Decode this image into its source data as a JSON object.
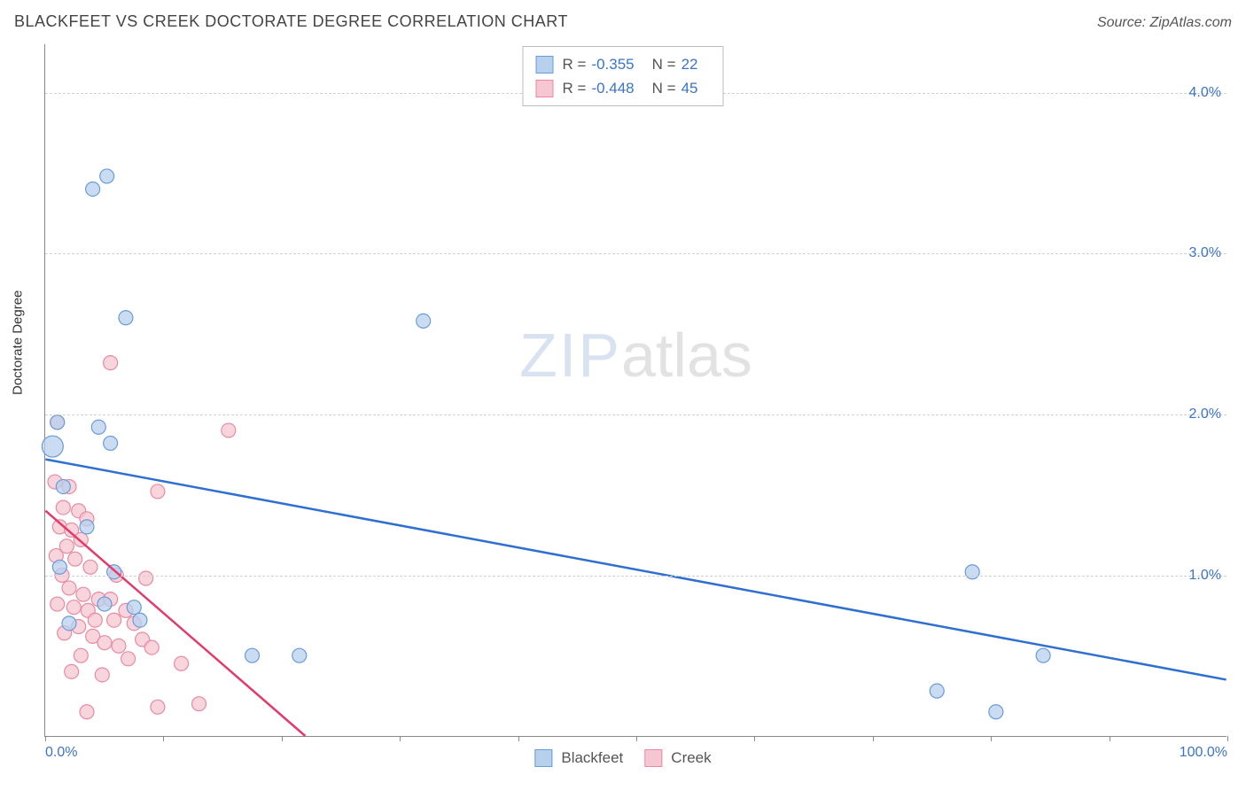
{
  "title": "BLACKFEET VS CREEK DOCTORATE DEGREE CORRELATION CHART",
  "source": "Source: ZipAtlas.com",
  "y_axis_label": "Doctorate Degree",
  "watermark": {
    "part1": "ZIP",
    "part2": "atlas"
  },
  "chart": {
    "type": "scatter",
    "xlim": [
      0,
      100
    ],
    "ylim": [
      0,
      4.3
    ],
    "x_ticks": [
      0,
      10,
      20,
      30,
      40,
      50,
      60,
      70,
      80,
      90,
      100
    ],
    "x_tick_labels": {
      "0": "0.0%",
      "100": "100.0%"
    },
    "y_ticks": [
      1.0,
      2.0,
      3.0,
      4.0
    ],
    "y_tick_labels": [
      "1.0%",
      "2.0%",
      "3.0%",
      "4.0%"
    ],
    "background_color": "#ffffff",
    "grid_color": "#d8d8d8",
    "axis_color": "#888888",
    "tick_label_color": "#3b74c8",
    "marker_radius": 8,
    "marker_radius_large": 12,
    "line_width": 2.5,
    "series": [
      {
        "name": "Blackfeet",
        "fill_color": "#b7d0ee",
        "stroke_color": "#6a9bd8",
        "line_color": "#2f6fd0",
        "R": "-0.355",
        "N": "22",
        "trend": {
          "x1": 0,
          "y1": 1.72,
          "x2": 100,
          "y2": 0.35
        },
        "points": [
          {
            "x": 0.6,
            "y": 1.8,
            "r": 12
          },
          {
            "x": 5.2,
            "y": 3.48
          },
          {
            "x": 4.0,
            "y": 3.4
          },
          {
            "x": 6.8,
            "y": 2.6
          },
          {
            "x": 32.0,
            "y": 2.58
          },
          {
            "x": 4.5,
            "y": 1.92
          },
          {
            "x": 1.0,
            "y": 1.95
          },
          {
            "x": 5.5,
            "y": 1.82
          },
          {
            "x": 1.5,
            "y": 1.55
          },
          {
            "x": 3.5,
            "y": 1.3
          },
          {
            "x": 1.2,
            "y": 1.05
          },
          {
            "x": 5.8,
            "y": 1.02
          },
          {
            "x": 5.0,
            "y": 0.82
          },
          {
            "x": 7.5,
            "y": 0.8
          },
          {
            "x": 2.0,
            "y": 0.7
          },
          {
            "x": 8.0,
            "y": 0.72
          },
          {
            "x": 17.5,
            "y": 0.5
          },
          {
            "x": 21.5,
            "y": 0.5
          },
          {
            "x": 78.5,
            "y": 1.02
          },
          {
            "x": 84.5,
            "y": 0.5
          },
          {
            "x": 75.5,
            "y": 0.28
          },
          {
            "x": 80.5,
            "y": 0.15
          }
        ]
      },
      {
        "name": "Creek",
        "fill_color": "#f6c7d2",
        "stroke_color": "#e88aa3",
        "line_color": "#e33a6a",
        "R": "-0.448",
        "N": "45",
        "trend": {
          "x1": 0,
          "y1": 1.4,
          "x2": 22,
          "y2": 0.0
        },
        "points": [
          {
            "x": 5.5,
            "y": 2.32
          },
          {
            "x": 15.5,
            "y": 1.9
          },
          {
            "x": 1.0,
            "y": 1.95
          },
          {
            "x": 0.8,
            "y": 1.58
          },
          {
            "x": 2.0,
            "y": 1.55
          },
          {
            "x": 9.5,
            "y": 1.52
          },
          {
            "x": 1.5,
            "y": 1.42
          },
          {
            "x": 2.8,
            "y": 1.4
          },
          {
            "x": 3.5,
            "y": 1.35
          },
          {
            "x": 1.2,
            "y": 1.3
          },
          {
            "x": 2.2,
            "y": 1.28
          },
          {
            "x": 3.0,
            "y": 1.22
          },
          {
            "x": 1.8,
            "y": 1.18
          },
          {
            "x": 0.9,
            "y": 1.12
          },
          {
            "x": 2.5,
            "y": 1.1
          },
          {
            "x": 3.8,
            "y": 1.05
          },
          {
            "x": 1.4,
            "y": 1.0
          },
          {
            "x": 6.0,
            "y": 1.0
          },
          {
            "x": 8.5,
            "y": 0.98
          },
          {
            "x": 2.0,
            "y": 0.92
          },
          {
            "x": 3.2,
            "y": 0.88
          },
          {
            "x": 4.5,
            "y": 0.85
          },
          {
            "x": 5.5,
            "y": 0.85
          },
          {
            "x": 1.0,
            "y": 0.82
          },
          {
            "x": 2.4,
            "y": 0.8
          },
          {
            "x": 3.6,
            "y": 0.78
          },
          {
            "x": 6.8,
            "y": 0.78
          },
          {
            "x": 4.2,
            "y": 0.72
          },
          {
            "x": 5.8,
            "y": 0.72
          },
          {
            "x": 7.5,
            "y": 0.7
          },
          {
            "x": 2.8,
            "y": 0.68
          },
          {
            "x": 1.6,
            "y": 0.64
          },
          {
            "x": 4.0,
            "y": 0.62
          },
          {
            "x": 8.2,
            "y": 0.6
          },
          {
            "x": 5.0,
            "y": 0.58
          },
          {
            "x": 6.2,
            "y": 0.56
          },
          {
            "x": 3.0,
            "y": 0.5
          },
          {
            "x": 9.0,
            "y": 0.55
          },
          {
            "x": 7.0,
            "y": 0.48
          },
          {
            "x": 2.2,
            "y": 0.4
          },
          {
            "x": 4.8,
            "y": 0.38
          },
          {
            "x": 11.5,
            "y": 0.45
          },
          {
            "x": 13.0,
            "y": 0.2
          },
          {
            "x": 9.5,
            "y": 0.18
          },
          {
            "x": 3.5,
            "y": 0.15
          }
        ]
      }
    ]
  },
  "legend_top": {
    "rows": [
      {
        "swatch_fill": "#b7d0ee",
        "swatch_stroke": "#6a9bd8",
        "r_label": "R =",
        "r_value": "-0.355",
        "n_label": "N =",
        "n_value": "22"
      },
      {
        "swatch_fill": "#f6c7d2",
        "swatch_stroke": "#e88aa3",
        "r_label": "R =",
        "r_value": "-0.448",
        "n_label": "N =",
        "n_value": "45"
      }
    ]
  },
  "legend_bottom": {
    "items": [
      {
        "swatch_fill": "#b7d0ee",
        "swatch_stroke": "#6a9bd8",
        "label": "Blackfeet"
      },
      {
        "swatch_fill": "#f6c7d2",
        "swatch_stroke": "#e88aa3",
        "label": "Creek"
      }
    ]
  }
}
